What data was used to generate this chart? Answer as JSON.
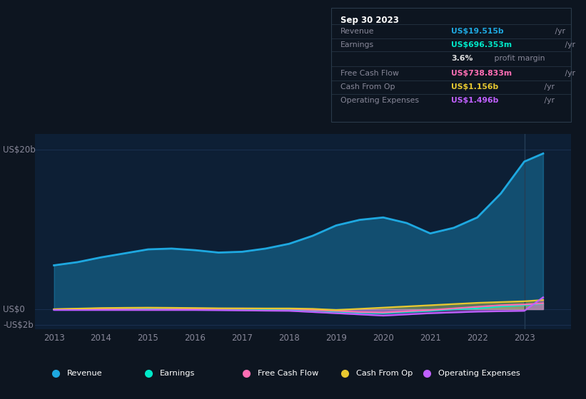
{
  "background_color": "#0d1520",
  "plot_bg_color": "#0d1f35",
  "ylim": [
    -2.5,
    22
  ],
  "x_years": [
    2013,
    2013.5,
    2014,
    2014.5,
    2015,
    2015.5,
    2016,
    2016.5,
    2017,
    2017.5,
    2018,
    2018.5,
    2019,
    2019.5,
    2020,
    2020.5,
    2021,
    2021.5,
    2022,
    2022.5,
    2023,
    2023.4
  ],
  "revenue": [
    5.5,
    5.9,
    6.5,
    7.0,
    7.5,
    7.6,
    7.4,
    7.1,
    7.2,
    7.6,
    8.2,
    9.2,
    10.5,
    11.2,
    11.5,
    10.8,
    9.5,
    10.2,
    11.5,
    14.5,
    18.5,
    19.515
  ],
  "earnings": [
    -0.05,
    0.0,
    0.05,
    0.08,
    0.1,
    0.08,
    0.05,
    0.04,
    0.05,
    0.0,
    -0.05,
    -0.15,
    -0.3,
    -0.45,
    -0.5,
    -0.35,
    -0.2,
    0.0,
    0.1,
    0.35,
    0.5,
    0.696
  ],
  "free_cash_flow": [
    0.0,
    0.05,
    0.1,
    0.12,
    0.15,
    0.12,
    0.1,
    0.08,
    0.1,
    0.08,
    0.05,
    -0.1,
    -0.2,
    -0.35,
    -0.4,
    -0.25,
    -0.1,
    0.1,
    0.3,
    0.5,
    0.6,
    0.739
  ],
  "cash_from_op": [
    0.0,
    0.08,
    0.15,
    0.18,
    0.2,
    0.18,
    0.15,
    0.12,
    0.1,
    0.1,
    0.1,
    0.05,
    -0.1,
    0.05,
    0.2,
    0.35,
    0.5,
    0.65,
    0.8,
    0.9,
    1.0,
    1.156
  ],
  "operating_expenses": [
    -0.1,
    -0.1,
    -0.1,
    -0.1,
    -0.1,
    -0.1,
    -0.1,
    -0.12,
    -0.15,
    -0.18,
    -0.2,
    -0.35,
    -0.5,
    -0.65,
    -0.8,
    -0.65,
    -0.5,
    -0.4,
    -0.3,
    -0.25,
    -0.2,
    1.496
  ],
  "revenue_color": "#1ea8e0",
  "earnings_color": "#00e8c8",
  "free_cash_flow_color": "#ff6eb4",
  "cash_from_op_color": "#e8c830",
  "operating_expenses_color": "#c060ff",
  "grid_color": "#1a3050",
  "text_color": "#888899",
  "legend_bg": "#111822",
  "legend_border": "#2a3a4a",
  "info_box_bg": "#000810",
  "info_box_border": "#2a3a4a",
  "info_box": {
    "title": "Sep 30 2023",
    "rows": [
      {
        "label": "Revenue",
        "value": "US$19.515b",
        "unit": " /yr",
        "value_color": "#1ea8e0"
      },
      {
        "label": "Earnings",
        "value": "US$696.353m",
        "unit": " /yr",
        "value_color": "#00e8c8"
      },
      {
        "label": "",
        "value": "3.6%",
        "unit": " profit margin",
        "value_color": "#e0e0e0"
      },
      {
        "label": "Free Cash Flow",
        "value": "US$738.833m",
        "unit": " /yr",
        "value_color": "#ff6eb4"
      },
      {
        "label": "Cash From Op",
        "value": "US$1.156b",
        "unit": " /yr",
        "value_color": "#e8c830"
      },
      {
        "label": "Operating Expenses",
        "value": "US$1.496b",
        "unit": " /yr",
        "value_color": "#c060ff"
      }
    ]
  },
  "legend_items": [
    {
      "label": "Revenue",
      "color": "#1ea8e0"
    },
    {
      "label": "Earnings",
      "color": "#00e8c8"
    },
    {
      "label": "Free Cash Flow",
      "color": "#ff6eb4"
    },
    {
      "label": "Cash From Op",
      "color": "#e8c830"
    },
    {
      "label": "Operating Expenses",
      "color": "#c060ff"
    }
  ]
}
